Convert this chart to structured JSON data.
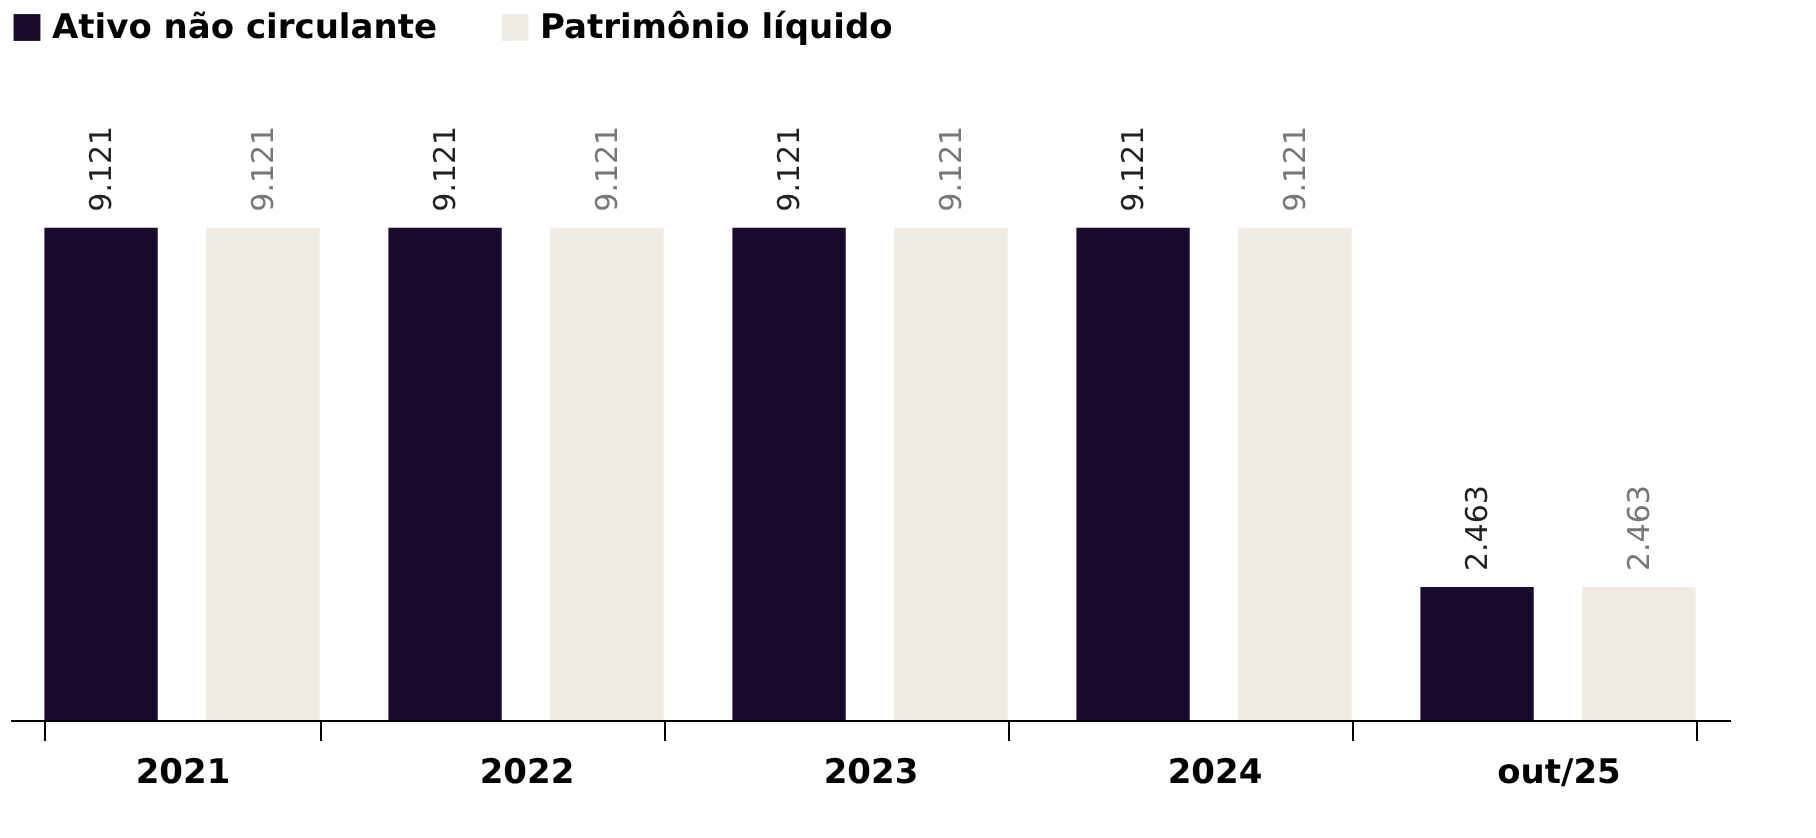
{
  "chart_data": {
    "type": "bar",
    "categories": [
      "2021",
      "2022",
      "2023",
      "2024",
      "out/25"
    ],
    "series": [
      {
        "name": "Ativo não circulante",
        "color": "#1a0a2e",
        "values": [
          9.121,
          9.121,
          9.121,
          9.121,
          2.463
        ],
        "value_labels": [
          "9.121",
          "9.121",
          "9.121",
          "9.121",
          "2.463"
        ]
      },
      {
        "name": "Patrimônio líquido",
        "color": "#f0ebe3",
        "values": [
          9.121,
          9.121,
          9.121,
          9.121,
          2.463
        ],
        "value_labels": [
          "9.121",
          "9.121",
          "9.121",
          "9.121",
          "2.463"
        ]
      }
    ],
    "legend": "top",
    "grid": false,
    "tick_labels": "x"
  }
}
